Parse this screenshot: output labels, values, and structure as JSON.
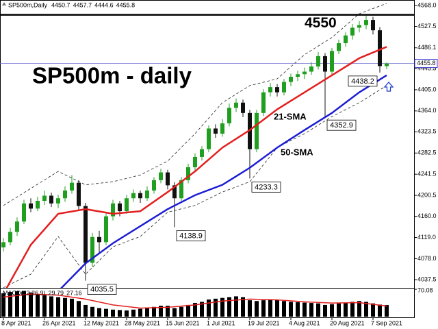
{
  "chart_data": {
    "type": "candlestick",
    "symbol": "SP500m,Daily",
    "title": "SP500m - daily",
    "categories": [
      "8 Apr 2021",
      null,
      null,
      null,
      null,
      null,
      "26 Apr 2021",
      null,
      null,
      null,
      null,
      null,
      "12 May 2021",
      null,
      null,
      null,
      null,
      null,
      "28 May 2021",
      null,
      null,
      null,
      null,
      null,
      "15 Jun 2021",
      null,
      null,
      null,
      null,
      null,
      "1 Jul 2021",
      null,
      null,
      null,
      null,
      null,
      "19 Jul 2021",
      null,
      null,
      null,
      null,
      null,
      "4 Aug 2021",
      null,
      null,
      null,
      null,
      null,
      "20 Aug 2021",
      null,
      null,
      null,
      null,
      null,
      "7 Sep 2021",
      null,
      null
    ],
    "open": [
      4100,
      4110,
      4130,
      4150,
      4185,
      4175,
      4190,
      4200,
      4185,
      4195,
      4210,
      4225,
      4180,
      4070,
      4120,
      4110,
      4160,
      4185,
      4170,
      4195,
      4205,
      4195,
      4210,
      4230,
      4245,
      4220,
      4195,
      4230,
      4255,
      4275,
      4290,
      4330,
      4320,
      4340,
      4370,
      4380,
      4360,
      4290,
      4360,
      4400,
      4410,
      4400,
      4420,
      4430,
      4435,
      4440,
      4450,
      4470,
      4440,
      4480,
      4495,
      4510,
      4525,
      4530,
      4540,
      4520,
      4450.7
    ],
    "high": [
      4118,
      4138,
      4158,
      4192,
      4195,
      4198,
      4210,
      4206,
      4202,
      4218,
      4240,
      4230,
      4186,
      4128,
      4132,
      4168,
      4192,
      4190,
      4202,
      4212,
      4210,
      4218,
      4236,
      4252,
      4250,
      4226,
      4236,
      4262,
      4282,
      4296,
      4336,
      4338,
      4348,
      4378,
      4388,
      4386,
      4366,
      4366,
      4406,
      4418,
      4416,
      4426,
      4436,
      4442,
      4448,
      4458,
      4478,
      4476,
      4486,
      4502,
      4516,
      4532,
      4538,
      4548,
      4546,
      4526,
      4457.7
    ],
    "low": [
      4092,
      4104,
      4122,
      4145,
      4168,
      4170,
      4182,
      4178,
      4176,
      4188,
      4204,
      4172,
      4035.5,
      4062,
      4090,
      4104,
      4152,
      4160,
      4165,
      4188,
      4186,
      4190,
      4204,
      4224,
      4212,
      4138.9,
      4190,
      4224,
      4248,
      4268,
      4284,
      4312,
      4314,
      4334,
      4362,
      4352,
      4233.3,
      4284,
      4354,
      4392,
      4392,
      4394,
      4412,
      4422,
      4426,
      4434,
      4444,
      4352.9,
      4434,
      4474,
      4488,
      4502,
      4516,
      4522,
      4512,
      4438.2,
      4444.6
    ],
    "close": [
      4110,
      4130,
      4150,
      4185,
      4175,
      4190,
      4200,
      4185,
      4195,
      4210,
      4225,
      4180,
      4070,
      4120,
      4110,
      4160,
      4185,
      4170,
      4195,
      4205,
      4195,
      4210,
      4230,
      4245,
      4220,
      4195,
      4230,
      4255,
      4275,
      4290,
      4330,
      4320,
      4340,
      4370,
      4380,
      4360,
      4290,
      4360,
      4400,
      4410,
      4400,
      4420,
      4430,
      4435,
      4440,
      4450,
      4470,
      4440,
      4480,
      4495,
      4510,
      4525,
      4530,
      4540,
      4520,
      4450.7,
      4455.8
    ],
    "up_color": "#1f9e1f",
    "down_color": "#111111",
    "ylim": [
      4021.6,
      4578.6
    ],
    "yticks": [
      {
        "value": 4568,
        "label": "4568.0"
      },
      4527.5,
      4486.1,
      4445.5,
      {
        "value": 4405,
        "label": "4405.0"
      },
      {
        "value": 4364,
        "label": "4364.0"
      },
      4323.5,
      4282.5,
      4241.5,
      4200.5,
      {
        "value": 4160,
        "label": "4160.0"
      },
      {
        "value": 4119,
        "label": "4119.0"
      },
      {
        "value": 4078,
        "label": "4078.0"
      },
      4037.5
    ],
    "level": 4550,
    "price_labels": [
      4035.5,
      4138.9,
      4233.3,
      4352.9,
      4438.2
    ],
    "lines": [
      {
        "name": "21-SMA",
        "color": "#e31e1e",
        "x": [
          0,
          4,
          8,
          12,
          16,
          20,
          24,
          28,
          32,
          36,
          40,
          44,
          48,
          52,
          56
        ],
        "values": [
          4010,
          4105,
          4165,
          4174,
          4165,
          4170,
          4207,
          4247,
          4293,
          4327,
          4367,
          4400,
          4433,
          4466,
          4488
        ]
      },
      {
        "name": "50-SMA",
        "color": "#1c1cd4",
        "x": [
          0,
          4,
          8,
          12,
          16,
          20,
          24,
          28,
          32,
          36,
          40,
          44,
          48,
          52,
          56
        ],
        "values": [
          null,
          null,
          4015,
          4069,
          4108,
          4141,
          4174,
          4201,
          4221,
          4254,
          4293,
          4327,
          4360,
          4400,
          4433
        ]
      }
    ],
    "bands": {
      "x": [
        0,
        4,
        8,
        12,
        16,
        20,
        24,
        28,
        32,
        36,
        40,
        44,
        48,
        52,
        56
      ],
      "upper": [
        4181,
        4214,
        4247,
        4221,
        4227,
        4240,
        4267,
        4320,
        4380,
        4413,
        4426,
        4473,
        4506,
        4552,
        4572
      ],
      "lower": [
        4022,
        4048,
        4121,
        4048,
        4101,
        4121,
        4168,
        4181,
        4207,
        4227,
        4293,
        4320,
        4353,
        4380,
        4413
      ]
    },
    "macd": {
      "name": "MACD(12,26,9)",
      "values": [
        60,
        63,
        65,
        66,
        62,
        58,
        55,
        52,
        50,
        48,
        46,
        40,
        30,
        25,
        22,
        20,
        18,
        17,
        16,
        18,
        20,
        22,
        25,
        28,
        28,
        22,
        25,
        30,
        35,
        38,
        44,
        46,
        48,
        50,
        52,
        50,
        42,
        40,
        42,
        44,
        43,
        40,
        38,
        37,
        36,
        35,
        34,
        30,
        32,
        34,
        36,
        38,
        40,
        38,
        34,
        31,
        29.79
      ],
      "signal": {
        "color": "#e31e1e",
        "x": [
          0,
          4,
          8,
          12,
          16,
          20,
          24,
          28,
          32,
          36,
          40,
          44,
          48,
          52,
          56
        ],
        "values": [
          50,
          58,
          55,
          45,
          30,
          22,
          24,
          30,
          40,
          45,
          43,
          38,
          35,
          36,
          27.16
        ]
      },
      "ylim": [
        0,
        72
      ],
      "yticks": [
        70.08
      ]
    }
  }
}
